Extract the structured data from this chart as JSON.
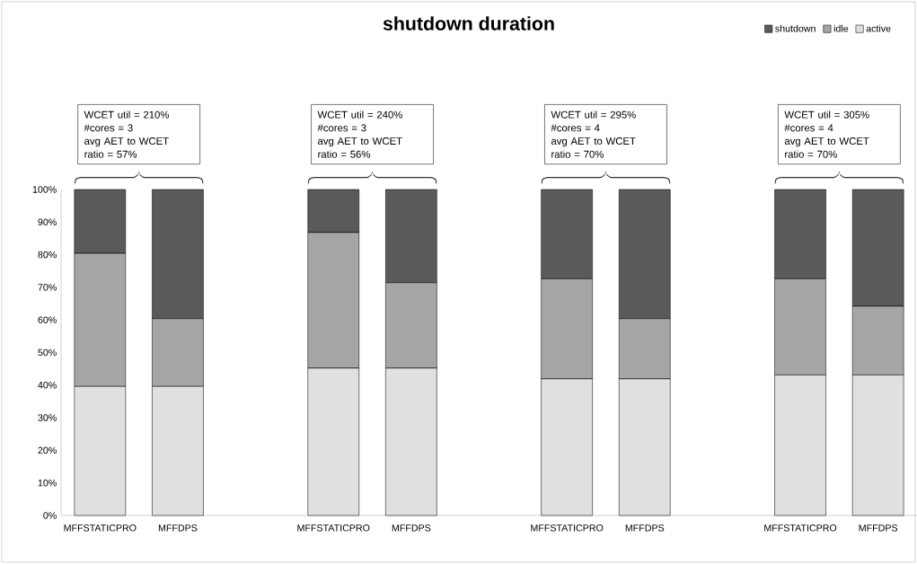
{
  "chart_data": {
    "type": "bar",
    "title": "shutdown duration",
    "stacked": true,
    "categories": [
      "MFFSTATICPRO",
      "MFFDPS",
      null,
      "MFFSTATICPRO",
      "MFFDPS",
      null,
      "MFFSTATICPRO",
      "MFFDPS",
      null,
      "MFFSTATICPRO",
      "MFFDPS"
    ],
    "series": [
      {
        "name": "active",
        "color": "#e0e0e0",
        "values": [
          39.6,
          39.6,
          null,
          45.2,
          45.2,
          null,
          41.9,
          41.9,
          null,
          43.1,
          43.1
        ]
      },
      {
        "name": "idle",
        "color": "#a6a6a6",
        "values": [
          40.8,
          20.8,
          null,
          41.6,
          26.2,
          null,
          30.7,
          18.5,
          null,
          29.5,
          21.1
        ]
      },
      {
        "name": "shutdown",
        "color": "#5a5a5a",
        "values": [
          19.6,
          39.6,
          null,
          13.2,
          28.6,
          null,
          27.4,
          39.6,
          null,
          27.4,
          35.8
        ]
      }
    ],
    "ylim": [
      0,
      100
    ],
    "yticks": [
      {
        "value": 0,
        "label": "0%"
      },
      {
        "value": 10,
        "label": "10%"
      },
      {
        "value": 20,
        "label": "20%"
      },
      {
        "value": 30,
        "label": "30%"
      },
      {
        "value": 40,
        "label": "40%"
      },
      {
        "value": 50,
        "label": "50%"
      },
      {
        "value": 60,
        "label": "60%"
      },
      {
        "value": 70,
        "label": "70%"
      },
      {
        "value": 80,
        "label": "80%"
      },
      {
        "value": 90,
        "label": "90%"
      },
      {
        "value": 100,
        "label": "100%"
      }
    ],
    "grid": false,
    "legend": "top right",
    "annotations": [
      "WCET util = 210%\n#cores = 3\navg AET to WCET\nratio = 57%",
      "WCET util = 240%\n#cores = 3\navg AET to WCET\nratio = 56%",
      "WCET util = 295%\n#cores = 4\navg AET to WCET\nratio = 70%",
      "WCET util = 305%\n#cores = 4\navg AET to WCET\nratio = 70%"
    ]
  }
}
